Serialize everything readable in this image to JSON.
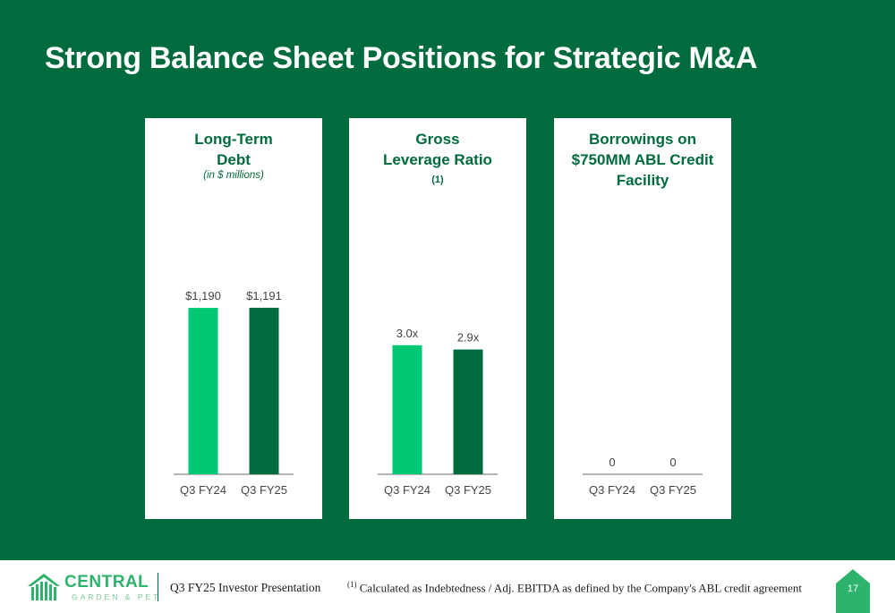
{
  "title": "Strong Balance Sheet Positions for Strategic M&A",
  "colors": {
    "background": "#006b3c",
    "bar_prior": "#00c875",
    "bar_current": "#006b3c",
    "accent": "#2db36b"
  },
  "chart_data": [
    {
      "type": "bar",
      "title": "Long-Term Debt",
      "subtitle": "(in $ millions)",
      "categories": [
        "Q3 FY24",
        "Q3 FY25"
      ],
      "values": [
        1190,
        1191
      ],
      "labels": [
        "$1,190",
        "$1,191"
      ],
      "ylim": [
        0,
        1600
      ]
    },
    {
      "type": "bar",
      "title": "Gross Leverage Ratio",
      "title_sup": "(1)",
      "categories": [
        "Q3 FY24",
        "Q3 FY25"
      ],
      "values": [
        3.0,
        2.9
      ],
      "labels": [
        "3.0x",
        "2.9x"
      ],
      "ylim": [
        0,
        5.2
      ]
    },
    {
      "type": "bar",
      "title": "Borrowings on $750MM ABL Credit Facility",
      "categories": [
        "Q3 FY24",
        "Q3 FY25"
      ],
      "values": [
        0,
        0
      ],
      "labels": [
        "0",
        "0"
      ],
      "ylim": [
        0,
        750
      ]
    }
  ],
  "footer": {
    "logo_name": "CENTRAL",
    "logo_sub": "GARDEN & PET",
    "presentation": "Q3 FY25 Investor Presentation",
    "footnote_marker": "(1)",
    "footnote": "Calculated as Indebtedness / Adj. EBITDA as defined by the Company's ABL credit agreement",
    "page": "17"
  }
}
